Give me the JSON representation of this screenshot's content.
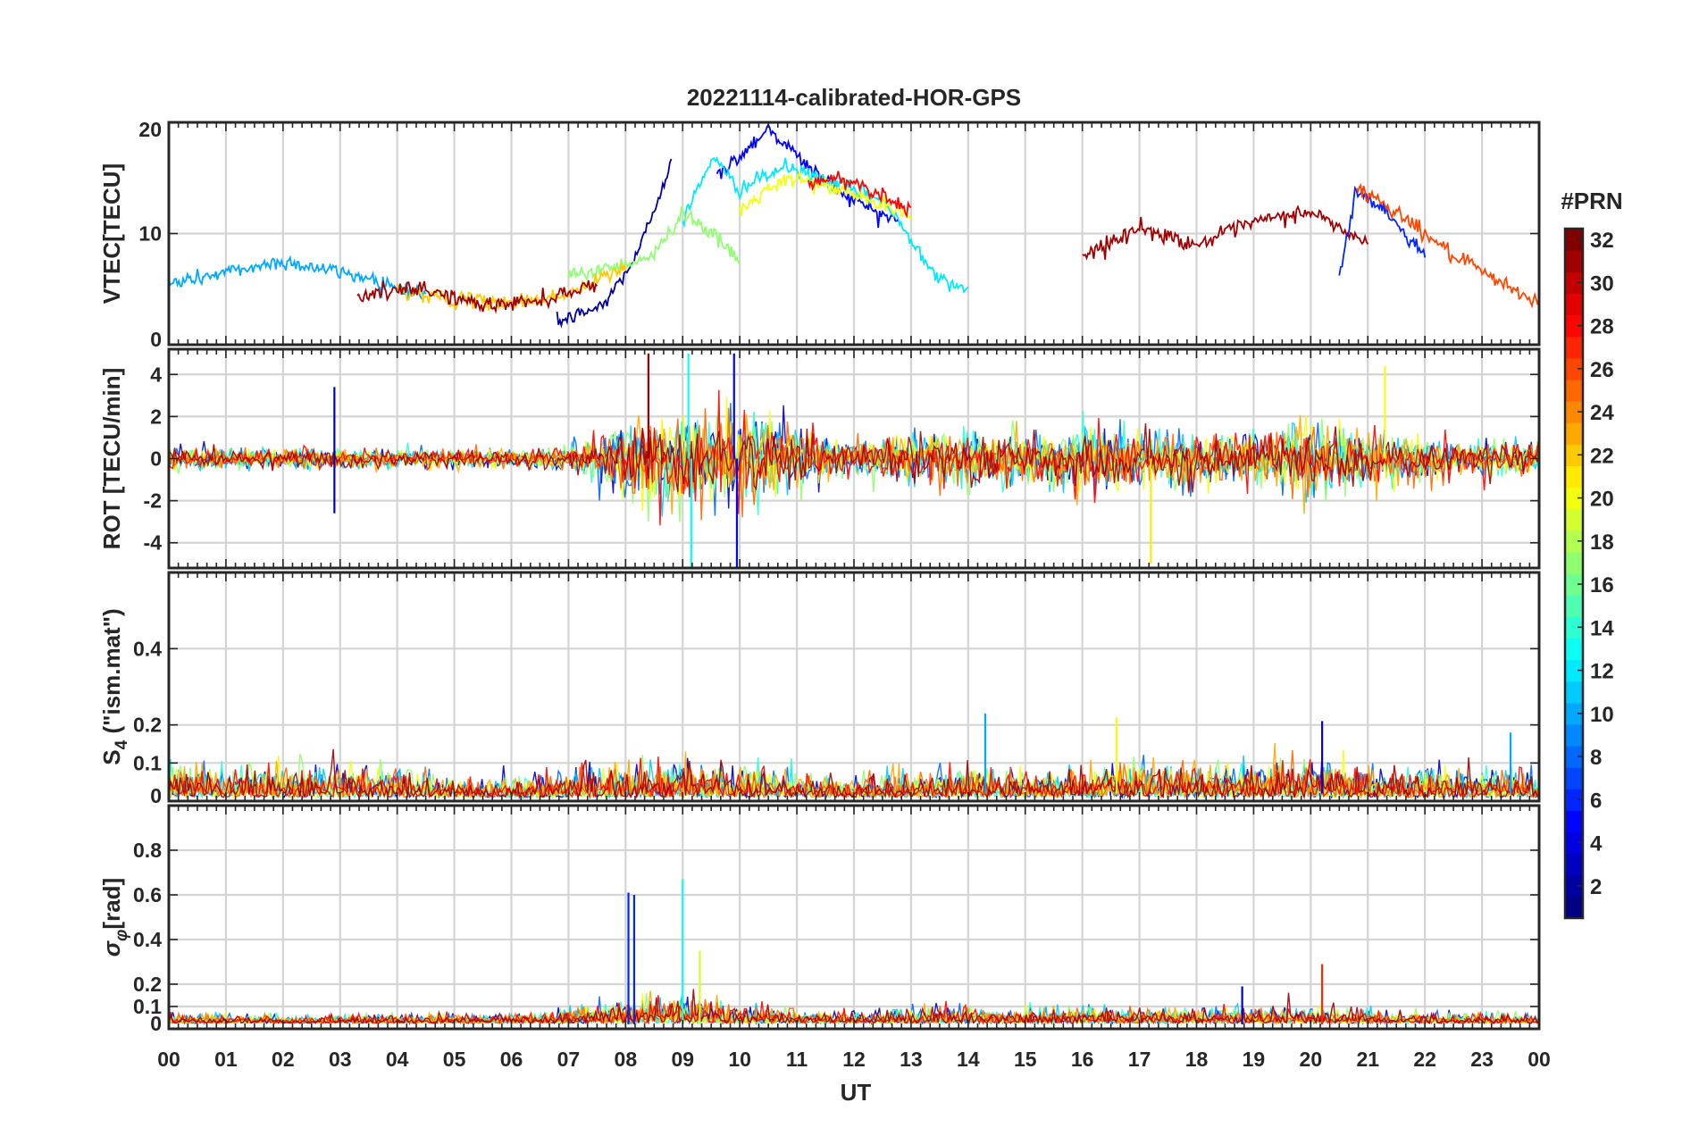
{
  "figure": {
    "title": "20221114-calibrated-HOR-GPS",
    "xlabel": "UT",
    "x_tick_labels": [
      "00",
      "01",
      "02",
      "03",
      "04",
      "05",
      "06",
      "07",
      "08",
      "09",
      "10",
      "11",
      "12",
      "13",
      "14",
      "15",
      "16",
      "17",
      "18",
      "19",
      "20",
      "21",
      "22",
      "23",
      "00"
    ]
  },
  "colorbar": {
    "title": "#PRN",
    "tick_labels": [
      "32",
      "30",
      "28",
      "26",
      "24",
      "22",
      "20",
      "18",
      "16",
      "14",
      "12",
      "10",
      "8",
      "6",
      "4",
      "2"
    ],
    "range": [
      1,
      32
    ],
    "colormap": "jet",
    "jet_stops": [
      "#000080",
      "#0000ff",
      "#00ffff",
      "#ffff00",
      "#ff0000",
      "#800000"
    ]
  },
  "chart_data": [
    {
      "type": "line",
      "id": "vtec",
      "ylabel": "VTEC[TECU]",
      "xlim": [
        0,
        24
      ],
      "ylim": [
        0,
        20
      ],
      "y_ticks": [
        0,
        10,
        20
      ],
      "grid": true,
      "series_color_by": "PRN",
      "series": [
        {
          "prn": 2,
          "x": [
            6.8,
            7.6,
            8.2,
            8.8
          ],
          "y": [
            2.0,
            3.5,
            8.0,
            16.5
          ]
        },
        {
          "prn": 5,
          "x": [
            9.6,
            10.5,
            11.2,
            12.0,
            12.8
          ],
          "y": [
            15.0,
            19.5,
            16.0,
            13.0,
            11.0
          ]
        },
        {
          "prn": 10,
          "x": [
            0.0,
            1.0,
            2.0,
            3.5,
            4.5
          ],
          "y": [
            5.5,
            6.5,
            7.5,
            6.0,
            4.5
          ]
        },
        {
          "prn": 12,
          "x": [
            9.0,
            9.5,
            10.0,
            10.8,
            12.5,
            13.5,
            14.0
          ],
          "y": [
            11.0,
            16.8,
            14.0,
            16.0,
            13.0,
            6.0,
            5.0
          ]
        },
        {
          "prn": 17,
          "x": [
            7.0,
            8.5,
            9.0,
            9.4,
            10.0
          ],
          "y": [
            6.0,
            8.0,
            12.0,
            10.5,
            7.5
          ]
        },
        {
          "prn": 20,
          "x": [
            10.0,
            10.5,
            11.0,
            12.0,
            13.0
          ],
          "y": [
            12.0,
            14.0,
            15.0,
            13.5,
            11.5
          ]
        },
        {
          "prn": 22,
          "x": [
            4.0,
            5.0,
            6.0,
            7.0,
            8.0
          ],
          "y": [
            5.0,
            4.0,
            3.8,
            4.5,
            7.0
          ]
        },
        {
          "prn": 28,
          "x": [
            11.2,
            11.8,
            12.5,
            13.0
          ],
          "y": [
            14.5,
            15.0,
            13.5,
            12.0
          ]
        },
        {
          "prn": 31,
          "x": [
            3.3,
            4.5,
            5.5,
            6.5,
            7.5
          ],
          "y": [
            4.5,
            5.0,
            3.5,
            4.0,
            5.5
          ]
        },
        {
          "prn": 31,
          "x": [
            16.0,
            17.0,
            18.0,
            19.0,
            20.0,
            21.0
          ],
          "y": [
            8.0,
            10.5,
            9.0,
            11.0,
            12.0,
            9.0
          ]
        },
        {
          "prn": 6,
          "x": [
            20.5,
            20.8,
            21.3,
            22.0
          ],
          "y": [
            6.0,
            14.0,
            12.0,
            8.0
          ]
        },
        {
          "prn": 26,
          "x": [
            20.8,
            21.5,
            22.5,
            23.5,
            24.0
          ],
          "y": [
            14.2,
            12.0,
            8.0,
            5.0,
            4.0
          ]
        }
      ]
    },
    {
      "type": "line",
      "id": "rot",
      "ylabel": "ROT [TECU/min]",
      "xlim": [
        0,
        24
      ],
      "ylim": [
        -5.2,
        5.2
      ],
      "y_ticks": [
        -4,
        -2,
        0,
        2,
        4
      ],
      "grid": true,
      "series_color_by": "PRN",
      "noise_envelope": {
        "x": [
          0,
          2,
          4,
          6,
          7,
          7.7,
          8,
          9,
          10,
          11,
          12,
          13,
          14,
          15,
          16,
          17,
          18,
          19,
          20,
          21,
          22,
          23,
          24
        ],
        "amplitude": [
          0.7,
          0.6,
          0.6,
          0.6,
          0.8,
          1.8,
          2.5,
          2.8,
          2.7,
          2.0,
          1.0,
          1.8,
          1.7,
          1.6,
          2.2,
          1.6,
          1.7,
          1.8,
          2.2,
          1.7,
          1.3,
          1.2,
          1.0
        ]
      },
      "spikes": [
        {
          "x": 2.9,
          "y": 3.4,
          "prn": 3
        },
        {
          "x": 2.9,
          "y": -2.6,
          "prn": 3
        },
        {
          "x": 8.4,
          "y": 5.0,
          "prn": 31
        },
        {
          "x": 9.1,
          "y": 5.0,
          "prn": 13
        },
        {
          "x": 9.15,
          "y": -5.2,
          "prn": 13
        },
        {
          "x": 9.9,
          "y": 5.0,
          "prn": 5
        },
        {
          "x": 9.95,
          "y": -5.2,
          "prn": 5
        },
        {
          "x": 17.2,
          "y": -5.0,
          "prn": 21
        },
        {
          "x": 21.3,
          "y": 4.4,
          "prn": 20
        }
      ]
    },
    {
      "type": "line",
      "id": "s4",
      "ylabel": "S_4 (\"ism.mat\")",
      "ylabel_base": "S",
      "ylabel_sub": "4",
      "ylabel_rest": " (\"ism.mat\")",
      "xlim": [
        0,
        24
      ],
      "ylim": [
        0,
        0.6
      ],
      "y_ticks": [
        0,
        0.1,
        0.2,
        0.4
      ],
      "y_tick_labels": [
        "0",
        "0.1",
        "0.2",
        "0.4"
      ],
      "grid": true,
      "series_color_by": "PRN",
      "noise_envelope": {
        "x": [
          0,
          1,
          2,
          3,
          4,
          5,
          6,
          7,
          8,
          9,
          10,
          11,
          12,
          13,
          14,
          15,
          16,
          17,
          18,
          19,
          20,
          21,
          22,
          23,
          24
        ],
        "amplitude": [
          0.12,
          0.09,
          0.1,
          0.09,
          0.09,
          0.06,
          0.06,
          0.08,
          0.1,
          0.12,
          0.1,
          0.08,
          0.06,
          0.07,
          0.1,
          0.07,
          0.08,
          0.11,
          0.1,
          0.1,
          0.12,
          0.09,
          0.09,
          0.09,
          0.07
        ]
      },
      "spikes": [
        {
          "x": 14.3,
          "y": 0.23,
          "prn": 10
        },
        {
          "x": 16.6,
          "y": 0.22,
          "prn": 20
        },
        {
          "x": 20.2,
          "y": 0.21,
          "prn": 4
        },
        {
          "x": 23.5,
          "y": 0.18,
          "prn": 10
        }
      ]
    },
    {
      "type": "line",
      "id": "sigma_phi",
      "ylabel": "σ_φ[rad]",
      "ylabel_base": "σ",
      "ylabel_sub": "φ",
      "ylabel_rest": "[rad]",
      "xlim": [
        0,
        24
      ],
      "ylim": [
        0,
        1.0
      ],
      "y_ticks": [
        0,
        0.1,
        0.2,
        0.4,
        0.6,
        0.8
      ],
      "y_tick_labels": [
        "0",
        "0.1",
        "0.2",
        "0.4",
        "0.6",
        "0.8"
      ],
      "grid": true,
      "series_color_by": "PRN",
      "noise_envelope": {
        "x": [
          0,
          2,
          4,
          6,
          7,
          8,
          9,
          10,
          11,
          12,
          13,
          14,
          15,
          16,
          17,
          18,
          19,
          20,
          21,
          22,
          23,
          24
        ],
        "amplitude": [
          0.05,
          0.04,
          0.05,
          0.05,
          0.07,
          0.12,
          0.14,
          0.1,
          0.07,
          0.05,
          0.08,
          0.09,
          0.07,
          0.08,
          0.08,
          0.08,
          0.08,
          0.09,
          0.08,
          0.05,
          0.05,
          0.05
        ]
      },
      "spikes": [
        {
          "x": 8.05,
          "y": 0.61,
          "prn": 6
        },
        {
          "x": 8.15,
          "y": 0.6,
          "prn": 6
        },
        {
          "x": 9.0,
          "y": 0.67,
          "prn": 13
        },
        {
          "x": 9.3,
          "y": 0.35,
          "prn": 19
        },
        {
          "x": 18.8,
          "y": 0.19,
          "prn": 4
        },
        {
          "x": 20.2,
          "y": 0.29,
          "prn": 27
        }
      ]
    }
  ]
}
